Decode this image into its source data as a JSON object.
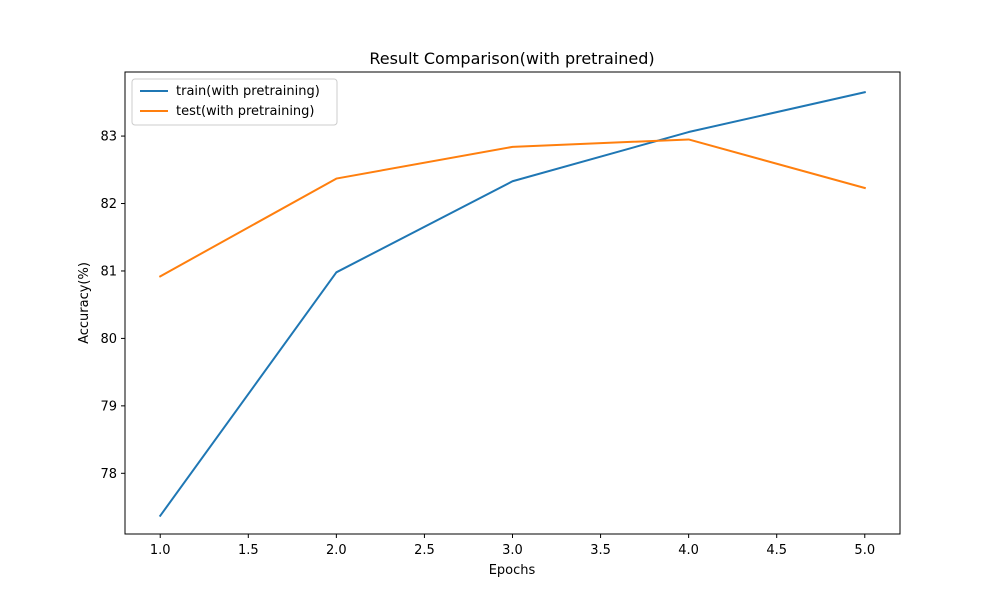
{
  "chart_data": {
    "type": "line",
    "title": "Result Comparison(with pretrained)",
    "xlabel": "Epochs",
    "ylabel": "Accuracy(%)",
    "x": [
      1,
      2,
      3,
      4,
      5
    ],
    "xlim": [
      0.8,
      5.2
    ],
    "ylim": [
      77.1,
      83.95
    ],
    "x_ticks": [
      1.0,
      1.5,
      2.0,
      2.5,
      3.0,
      3.5,
      4.0,
      4.5,
      5.0
    ],
    "x_tick_labels": [
      "1.0",
      "1.5",
      "2.0",
      "2.5",
      "3.0",
      "3.5",
      "4.0",
      "4.5",
      "5.0"
    ],
    "y_ticks": [
      78,
      79,
      80,
      81,
      82,
      83
    ],
    "y_tick_labels": [
      "78",
      "79",
      "80",
      "81",
      "82",
      "83"
    ],
    "grid": false,
    "legend_position": "top-left",
    "series": [
      {
        "name": "train(with pretraining)",
        "color": "#1f77b4",
        "values": [
          77.37,
          80.98,
          82.33,
          83.06,
          83.65
        ]
      },
      {
        "name": "test(with pretraining)",
        "color": "#ff7f0e",
        "values": [
          80.92,
          82.37,
          82.84,
          82.95,
          82.23
        ]
      }
    ]
  }
}
